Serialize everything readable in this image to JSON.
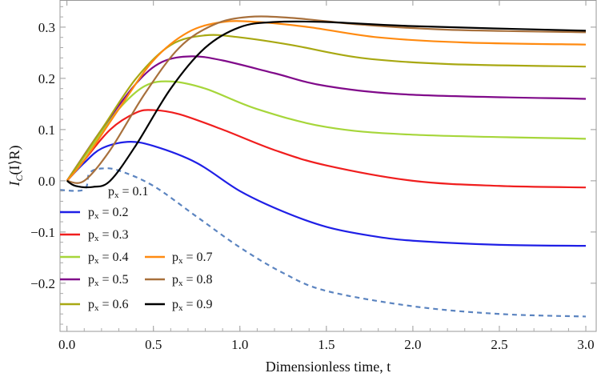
{
  "chart_data": {
    "type": "line",
    "title": "",
    "xlabel": "Dimensionless time, t",
    "ylabel": "I_C(I⟩R)",
    "ylabel_main": "I",
    "ylabel_sub": "C",
    "ylabel_rest": "(I⟩R)",
    "xlim": [
      -0.04,
      3.06
    ],
    "ylim": [
      -0.294,
      0.353
    ],
    "xticks": [
      "0.0",
      "0.5",
      "1.0",
      "1.5",
      "2.0",
      "2.5",
      "3.0"
    ],
    "yticks": [
      "−0.2",
      "−0.1",
      "0.0",
      "0.1",
      "0.2",
      "0.3"
    ],
    "grid": false,
    "legend_placement": "bottom-left",
    "series": [
      {
        "name": "p_x = 0.1",
        "label_var": "p",
        "label_sub": "x",
        "label_val": " = 0.1",
        "color": "#5b84c0",
        "dashed": true,
        "points": [
          [
            -0.04,
            -0.018
          ],
          [
            0.1,
            -0.017
          ],
          [
            0.13,
            0.015
          ],
          [
            0.2,
            0.024
          ],
          [
            0.3,
            0.02
          ],
          [
            0.5,
            -0.01
          ],
          [
            0.75,
            -0.07
          ],
          [
            1.0,
            -0.13
          ],
          [
            1.25,
            -0.18
          ],
          [
            1.5,
            -0.215
          ],
          [
            2.0,
            -0.245
          ],
          [
            2.5,
            -0.26
          ],
          [
            3.0,
            -0.265
          ]
        ]
      },
      {
        "name": "p_x = 0.2",
        "label_var": "p",
        "label_sub": "x",
        "label_val": " = 0.2",
        "color": "#1f1fe6",
        "points": [
          [
            0,
            0
          ],
          [
            0.1,
            0.035
          ],
          [
            0.2,
            0.063
          ],
          [
            0.35,
            0.076
          ],
          [
            0.5,
            0.068
          ],
          [
            0.75,
            0.035
          ],
          [
            1.0,
            -0.02
          ],
          [
            1.25,
            -0.06
          ],
          [
            1.5,
            -0.09
          ],
          [
            1.75,
            -0.107
          ],
          [
            2.0,
            -0.117
          ],
          [
            2.5,
            -0.125
          ],
          [
            3.0,
            -0.127
          ]
        ]
      },
      {
        "name": "p_x = 0.3",
        "label_var": "p",
        "label_sub": "x",
        "label_val": " = 0.3",
        "color": "#f01e1e",
        "points": [
          [
            0,
            0
          ],
          [
            0.1,
            0.04
          ],
          [
            0.25,
            0.1
          ],
          [
            0.4,
            0.133
          ],
          [
            0.5,
            0.138
          ],
          [
            0.65,
            0.13
          ],
          [
            0.9,
            0.1
          ],
          [
            1.2,
            0.06
          ],
          [
            1.5,
            0.03
          ],
          [
            2.0,
            0.0
          ],
          [
            2.5,
            -0.01
          ],
          [
            3.0,
            -0.013
          ]
        ]
      },
      {
        "name": "p_x = 0.4",
        "label_var": "p",
        "label_sub": "x",
        "label_val": " = 0.4",
        "color": "#a6d63a",
        "points": [
          [
            0,
            0
          ],
          [
            0.15,
            0.07
          ],
          [
            0.3,
            0.14
          ],
          [
            0.45,
            0.185
          ],
          [
            0.6,
            0.194
          ],
          [
            0.8,
            0.18
          ],
          [
            1.1,
            0.14
          ],
          [
            1.5,
            0.105
          ],
          [
            2.0,
            0.09
          ],
          [
            3.0,
            0.082
          ]
        ]
      },
      {
        "name": "p_x = 0.5",
        "label_var": "p",
        "label_sub": "x",
        "label_val": " = 0.5",
        "color": "#800a8a",
        "points": [
          [
            0,
            0
          ],
          [
            0.2,
            0.1
          ],
          [
            0.4,
            0.19
          ],
          [
            0.55,
            0.232
          ],
          [
            0.72,
            0.243
          ],
          [
            0.9,
            0.235
          ],
          [
            1.2,
            0.21
          ],
          [
            1.5,
            0.185
          ],
          [
            2.0,
            0.168
          ],
          [
            3.0,
            0.16
          ]
        ]
      },
      {
        "name": "p_x = 0.6",
        "label_var": "p",
        "label_sub": "x",
        "label_val": " = 0.6",
        "color": "#a8a812",
        "points": [
          [
            0,
            0
          ],
          [
            0.2,
            0.1
          ],
          [
            0.4,
            0.2
          ],
          [
            0.6,
            0.265
          ],
          [
            0.8,
            0.284
          ],
          [
            1.0,
            0.28
          ],
          [
            1.3,
            0.265
          ],
          [
            1.7,
            0.24
          ],
          [
            2.2,
            0.228
          ],
          [
            3.0,
            0.223
          ]
        ]
      },
      {
        "name": "p_x = 0.7",
        "label_var": "p",
        "label_sub": "x",
        "label_val": " = 0.7",
        "color": "#ff8a10",
        "points": [
          [
            0,
            0
          ],
          [
            0.1,
            0.04
          ],
          [
            0.3,
            0.14
          ],
          [
            0.5,
            0.235
          ],
          [
            0.7,
            0.29
          ],
          [
            0.9,
            0.31
          ],
          [
            1.1,
            0.31
          ],
          [
            1.4,
            0.3
          ],
          [
            1.8,
            0.28
          ],
          [
            2.3,
            0.27
          ],
          [
            3.0,
            0.266
          ]
        ]
      },
      {
        "name": "p_x = 0.8",
        "label_var": "p",
        "label_sub": "x",
        "label_val": " = 0.8",
        "color": "#a8703c",
        "points": [
          [
            0,
            0
          ],
          [
            0.1,
            0.0
          ],
          [
            0.25,
            0.06
          ],
          [
            0.45,
            0.17
          ],
          [
            0.65,
            0.26
          ],
          [
            0.85,
            0.305
          ],
          [
            1.05,
            0.32
          ],
          [
            1.3,
            0.318
          ],
          [
            1.7,
            0.305
          ],
          [
            2.2,
            0.295
          ],
          [
            3.0,
            0.29
          ]
        ]
      },
      {
        "name": "p_x = 0.9",
        "label_var": "p",
        "label_sub": "x",
        "label_val": " = 0.9",
        "color": "#000000",
        "points": [
          [
            0,
            0
          ],
          [
            0.05,
            -0.01
          ],
          [
            0.15,
            -0.012
          ],
          [
            0.25,
            0.0
          ],
          [
            0.4,
            0.07
          ],
          [
            0.6,
            0.18
          ],
          [
            0.8,
            0.26
          ],
          [
            1.0,
            0.3
          ],
          [
            1.2,
            0.31
          ],
          [
            1.5,
            0.31
          ],
          [
            2.0,
            0.302
          ],
          [
            3.0,
            0.293
          ]
        ]
      }
    ]
  }
}
